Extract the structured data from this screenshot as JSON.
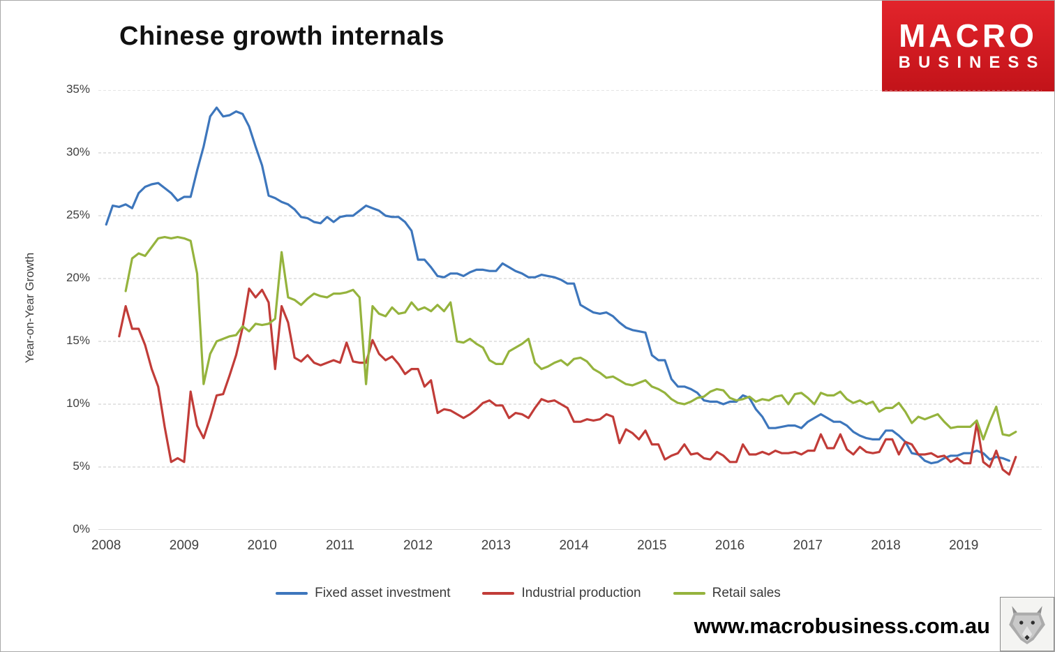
{
  "title": "Chinese growth internals",
  "logo": {
    "line1": "MACRO",
    "line2": "BUSINESS",
    "bg_color": "#cf1b22"
  },
  "footer": {
    "url": "www.macrobusiness.com.au"
  },
  "chart_data": {
    "type": "line",
    "title": "Chinese growth internals",
    "xlabel": "",
    "ylabel": "Year-on-Year Growth",
    "ylim": [
      0,
      35
    ],
    "xlim": [
      2007.9,
      2020.0
    ],
    "yticks": [
      0,
      5,
      10,
      15,
      20,
      25,
      30,
      35
    ],
    "ytick_labels": [
      "0%",
      "5%",
      "10%",
      "15%",
      "20%",
      "25%",
      "30%",
      "35%"
    ],
    "xticks": [
      2008,
      2009,
      2010,
      2011,
      2012,
      2013,
      2014,
      2015,
      2016,
      2017,
      2018,
      2019
    ],
    "grid": "horizontal-dashed",
    "legend_position": "bottom",
    "points_per_year": 12,
    "series": [
      {
        "name": "Fixed asset investment",
        "color": "#3d76bc",
        "start": 2008.0,
        "values": [
          24.3,
          25.8,
          25.7,
          25.9,
          25.6,
          26.8,
          27.3,
          27.5,
          27.6,
          27.2,
          26.8,
          26.2,
          26.5,
          26.5,
          28.6,
          30.5,
          32.9,
          33.6,
          32.9,
          33.0,
          33.3,
          33.1,
          32.1,
          30.5,
          29.0,
          26.6,
          26.4,
          26.1,
          25.9,
          25.5,
          24.9,
          24.8,
          24.5,
          24.4,
          24.9,
          24.5,
          24.9,
          25.0,
          25.0,
          25.4,
          25.8,
          25.6,
          25.4,
          25.0,
          24.9,
          24.9,
          24.5,
          23.8,
          21.5,
          21.5,
          20.9,
          20.2,
          20.1,
          20.4,
          20.4,
          20.2,
          20.5,
          20.7,
          20.7,
          20.6,
          20.6,
          21.2,
          20.9,
          20.6,
          20.4,
          20.1,
          20.1,
          20.3,
          20.2,
          20.1,
          19.9,
          19.6,
          19.6,
          17.9,
          17.6,
          17.3,
          17.2,
          17.3,
          17.0,
          16.5,
          16.1,
          15.9,
          15.8,
          15.7,
          13.9,
          13.5,
          13.5,
          12.0,
          11.4,
          11.4,
          11.2,
          10.9,
          10.3,
          10.2,
          10.2,
          10.0,
          10.2,
          10.2,
          10.7,
          10.5,
          9.6,
          9.0,
          8.1,
          8.1,
          8.2,
          8.3,
          8.3,
          8.1,
          8.6,
          8.9,
          9.2,
          8.9,
          8.6,
          8.6,
          8.3,
          7.8,
          7.5,
          7.3,
          7.2,
          7.2,
          7.9,
          7.9,
          7.5,
          7.0,
          6.1,
          6.0,
          5.5,
          5.3,
          5.4,
          5.7,
          5.9,
          5.9,
          6.1,
          6.1,
          6.3,
          6.1,
          5.6,
          5.8,
          5.7,
          5.5
        ]
      },
      {
        "name": "Industrial production",
        "color": "#c13c38",
        "start": 2008.1667,
        "values": [
          15.4,
          17.8,
          16.0,
          16.0,
          14.7,
          12.8,
          11.4,
          8.2,
          5.4,
          5.7,
          5.4,
          11.0,
          8.3,
          7.3,
          8.9,
          10.7,
          10.8,
          12.3,
          13.9,
          16.1,
          19.2,
          18.5,
          19.1,
          18.1,
          12.8,
          17.8,
          16.5,
          13.7,
          13.4,
          13.9,
          13.3,
          13.1,
          13.3,
          13.5,
          13.3,
          14.9,
          13.4,
          13.3,
          13.3,
          15.1,
          14.0,
          13.5,
          13.8,
          13.2,
          12.4,
          12.8,
          12.8,
          11.4,
          11.9,
          9.3,
          9.6,
          9.5,
          9.2,
          8.9,
          9.2,
          9.6,
          10.1,
          10.3,
          9.9,
          9.9,
          8.9,
          9.3,
          9.2,
          8.9,
          9.7,
          10.4,
          10.2,
          10.3,
          10.0,
          9.7,
          8.6,
          8.6,
          8.8,
          8.7,
          8.8,
          9.2,
          9.0,
          6.9,
          8.0,
          7.7,
          7.2,
          7.9,
          6.8,
          6.8,
          5.6,
          5.9,
          6.1,
          6.8,
          6.0,
          6.1,
          5.7,
          5.6,
          6.2,
          5.9,
          5.4,
          5.4,
          6.8,
          6.0,
          6.0,
          6.2,
          6.0,
          6.3,
          6.1,
          6.1,
          6.2,
          6.0,
          6.3,
          6.3,
          7.6,
          6.5,
          6.5,
          7.6,
          6.4,
          6.0,
          6.6,
          6.2,
          6.1,
          6.2,
          7.2,
          7.2,
          6.0,
          7.0,
          6.8,
          6.0,
          6.0,
          6.1,
          5.8,
          5.9,
          5.4,
          5.7,
          5.3,
          5.3,
          8.5,
          5.4,
          5.0,
          6.3,
          4.8,
          4.4,
          5.8
        ]
      },
      {
        "name": "Retail sales",
        "color": "#95b33d",
        "start": 2008.25,
        "values": [
          19.0,
          21.6,
          22.0,
          21.8,
          22.5,
          23.2,
          23.3,
          23.2,
          23.3,
          23.2,
          23.0,
          20.4,
          11.6,
          14.0,
          15.0,
          15.2,
          15.4,
          15.5,
          16.2,
          15.8,
          16.4,
          16.3,
          16.4,
          16.8,
          22.1,
          18.5,
          18.3,
          17.9,
          18.4,
          18.8,
          18.6,
          18.5,
          18.8,
          18.8,
          18.9,
          19.1,
          18.5,
          11.6,
          17.8,
          17.2,
          17.0,
          17.7,
          17.2,
          17.3,
          18.1,
          17.5,
          17.7,
          17.4,
          17.9,
          17.4,
          18.1,
          15.0,
          14.9,
          15.2,
          14.8,
          14.5,
          13.5,
          13.2,
          13.2,
          14.2,
          14.5,
          14.8,
          15.2,
          13.3,
          12.8,
          13.0,
          13.3,
          13.5,
          13.1,
          13.6,
          13.7,
          13.4,
          12.8,
          12.5,
          12.1,
          12.2,
          11.9,
          11.6,
          11.5,
          11.7,
          11.9,
          11.4,
          11.2,
          10.9,
          10.4,
          10.1,
          10.0,
          10.2,
          10.5,
          10.6,
          11.0,
          11.2,
          11.1,
          10.5,
          10.3,
          10.4,
          10.6,
          10.2,
          10.4,
          10.3,
          10.6,
          10.7,
          10.0,
          10.8,
          10.9,
          10.5,
          10.0,
          10.9,
          10.7,
          10.7,
          11.0,
          10.4,
          10.1,
          10.3,
          10.0,
          10.2,
          9.4,
          9.7,
          9.7,
          10.1,
          9.4,
          8.5,
          9.0,
          8.8,
          9.0,
          9.2,
          8.6,
          8.1,
          8.2,
          8.2,
          8.2,
          8.7,
          7.2,
          8.6,
          9.8,
          7.6,
          7.5,
          7.8
        ]
      }
    ]
  }
}
